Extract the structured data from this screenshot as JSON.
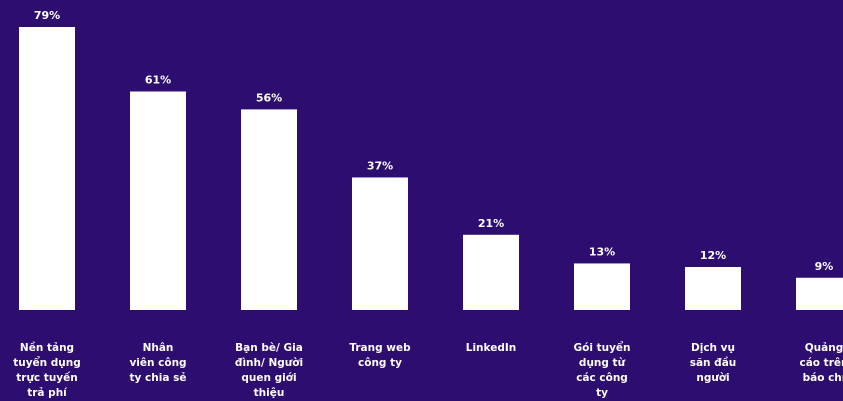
{
  "chart_data": {
    "type": "bar",
    "categories": [
      [
        "Nền tảng",
        "tuyển dụng",
        "trực tuyến",
        "trả phí"
      ],
      [
        "Nhân",
        "viên công",
        "ty chia sẻ"
      ],
      [
        "Bạn bè/ Gia",
        "đình/ Người",
        "quen giới",
        "thiệu"
      ],
      [
        "Trang web",
        "công ty"
      ],
      [
        "LinkedIn"
      ],
      [
        "Gói tuyển",
        "dụng từ",
        "các công",
        "ty"
      ],
      [
        "Dịch vụ",
        "săn đầu",
        "người"
      ],
      [
        "Quảng",
        "cáo trên",
        "báo chí"
      ]
    ],
    "values": [
      79,
      61,
      56,
      37,
      21,
      13,
      12,
      9
    ],
    "value_labels": [
      "79%",
      "61%",
      "56%",
      "37%",
      "21%",
      "13%",
      "12%",
      "9%"
    ],
    "unit": "%",
    "ylim": [
      0,
      79
    ],
    "grid": false,
    "colors": {
      "background": "#2e0d70",
      "bar": "#ffffff",
      "text": "#ffffff"
    }
  }
}
